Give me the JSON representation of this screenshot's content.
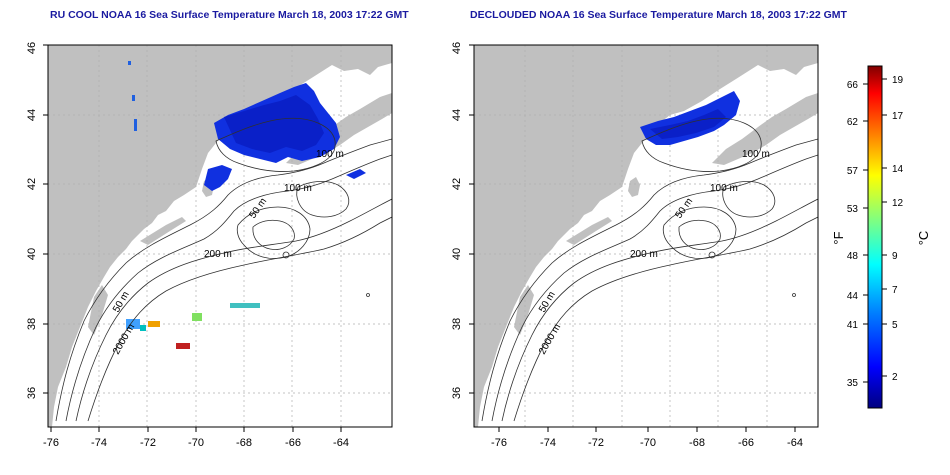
{
  "panels": [
    {
      "title": "RU COOL NOAA 16 Sea Surface Temperature March 18, 2003 17:22 GMT",
      "x_ticks": [
        "-76",
        "-74",
        "-72",
        "-70",
        "-68",
        "-66",
        "-64"
      ],
      "y_ticks": [
        "36",
        "38",
        "40",
        "42",
        "44",
        "46"
      ],
      "contour_labels": [
        "100 m",
        "100 m",
        "50 m",
        "200 m",
        "50 m",
        "2000 m"
      ]
    },
    {
      "title": "DECLOUDED NOAA 16 Sea Surface Temperature March 18, 2003 17:22 GMT",
      "x_ticks": [
        "-76",
        "-74",
        "-72",
        "-70",
        "-68",
        "-66",
        "-64"
      ],
      "y_ticks": [
        "36",
        "38",
        "40",
        "42",
        "44",
        "46"
      ],
      "contour_labels": [
        "100 m",
        "100 m",
        "50 m",
        "200 m",
        "50 m",
        "2000 m"
      ]
    }
  ],
  "colorbar": {
    "fahrenheit_label": "°F",
    "celsius_label": "°C",
    "fahrenheit_ticks": [
      "66",
      "62",
      "57",
      "53",
      "48",
      "44",
      "41",
      "35"
    ],
    "celsius_ticks": [
      "19",
      "17",
      "14",
      "12",
      "9",
      "7",
      "5",
      "2"
    ],
    "colors": [
      "#000080",
      "#0000ff",
      "#0080ff",
      "#00ffff",
      "#80ff80",
      "#ffff00",
      "#ff8000",
      "#ff0000",
      "#800000"
    ]
  },
  "colors": {
    "land": "#c0c0c0",
    "sst_blue": "#1030e0",
    "contour": "#303030",
    "grid": "#b0b0b0",
    "title": "#1a1aa0"
  }
}
